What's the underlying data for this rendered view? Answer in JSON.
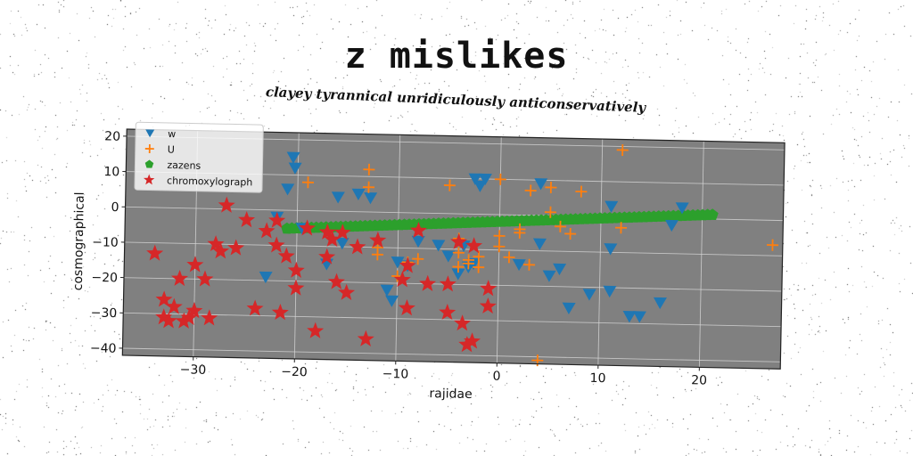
{
  "title": "z mislikes",
  "subtitle": "clayey tyrannical unridiculously anticonservatively",
  "chart_data": {
    "type": "scatter",
    "xlabel": "rajidae",
    "ylabel": "cosmographical",
    "xlim": [
      -37,
      28
    ],
    "ylim": [
      -42,
      22
    ],
    "xticks": [
      -30,
      -20,
      -10,
      0,
      10,
      20
    ],
    "yticks": [
      -40,
      -30,
      -20,
      -10,
      0,
      10,
      20
    ],
    "xtick_labels": [
      "−30",
      "−20",
      "−10",
      "0",
      "10",
      "20"
    ],
    "ytick_labels": [
      "−40",
      "−30",
      "−20",
      "−10",
      "0",
      "10",
      "20"
    ],
    "grid": true,
    "legend_position": "top-left",
    "plot_background": "#808080",
    "series": [
      {
        "name": "w",
        "marker": "triangle-down",
        "color": "#1f77b4",
        "points": [
          [
            -20.5,
            15
          ],
          [
            -20.3,
            12
          ],
          [
            -21,
            6
          ],
          [
            -19.5,
            -5
          ],
          [
            -22,
            -2
          ],
          [
            -23,
            -19
          ],
          [
            -17,
            -15
          ],
          [
            -16,
            4
          ],
          [
            -15.5,
            -9
          ],
          [
            -14,
            5
          ],
          [
            -12.8,
            4
          ],
          [
            -11,
            -22
          ],
          [
            -10.5,
            -25
          ],
          [
            -10,
            -14
          ],
          [
            -9,
            -15
          ],
          [
            -8,
            -8
          ],
          [
            -6,
            -9
          ],
          [
            -5,
            -12
          ],
          [
            -4,
            -17
          ],
          [
            -3.5,
            -9
          ],
          [
            -3,
            -15
          ],
          [
            -2.5,
            10
          ],
          [
            -2.5,
            -14
          ],
          [
            -1.5,
            10
          ],
          [
            -2,
            8
          ],
          [
            2,
            -14
          ],
          [
            4,
            9
          ],
          [
            4,
            -8
          ],
          [
            5,
            -17
          ],
          [
            6,
            -15
          ],
          [
            7,
            -26
          ],
          [
            9,
            -22
          ],
          [
            11,
            -9
          ],
          [
            11,
            -21
          ],
          [
            11,
            3
          ],
          [
            13,
            -28
          ],
          [
            14,
            -28
          ],
          [
            16,
            -24
          ],
          [
            17,
            -2
          ],
          [
            18,
            3
          ]
        ]
      },
      {
        "name": "U",
        "marker": "plus",
        "color": "#ff7f0e",
        "points": [
          [
            -19,
            8
          ],
          [
            -13,
            12
          ],
          [
            -13,
            7
          ],
          [
            -12,
            -10
          ],
          [
            -12,
            -12
          ],
          [
            -10,
            -18
          ],
          [
            -9,
            -14
          ],
          [
            -8,
            -13
          ],
          [
            -5,
            8
          ],
          [
            -4,
            -7
          ],
          [
            -4,
            -11
          ],
          [
            -4,
            -15
          ],
          [
            -3,
            -14
          ],
          [
            -3,
            -13
          ],
          [
            -2,
            -12
          ],
          [
            -2,
            -15
          ],
          [
            0,
            10
          ],
          [
            0,
            -6
          ],
          [
            0,
            -9
          ],
          [
            1,
            -12
          ],
          [
            2,
            -4
          ],
          [
            2,
            -5
          ],
          [
            3,
            -14
          ],
          [
            3,
            7
          ],
          [
            4,
            -41
          ],
          [
            5,
            8
          ],
          [
            5,
            1
          ],
          [
            6,
            -3
          ],
          [
            7,
            -5
          ],
          [
            8,
            7
          ],
          [
            12,
            19
          ],
          [
            12,
            -3
          ],
          [
            27,
            -7
          ]
        ]
      },
      {
        "name": "zazens",
        "marker": "pentagon",
        "color": "#2ca02c",
        "line": {
          "x_from": -21,
          "x_to": 21,
          "y_from": -5.2,
          "y_to": 1.2,
          "count": 88
        }
      },
      {
        "name": "chromoxylograph",
        "marker": "star",
        "color": "#d62728",
        "points": [
          [
            -34,
            -13
          ],
          [
            -33,
            -26
          ],
          [
            -33,
            -31
          ],
          [
            -32.5,
            -32
          ],
          [
            -32,
            -28
          ],
          [
            -31.5,
            -20
          ],
          [
            -31,
            -32
          ],
          [
            -30.5,
            -31
          ],
          [
            -30,
            -16
          ],
          [
            -30,
            -29
          ],
          [
            -29,
            -20
          ],
          [
            -28.5,
            -31
          ],
          [
            -28,
            -10
          ],
          [
            -27.5,
            -12
          ],
          [
            -27,
            1
          ],
          [
            -26,
            -11
          ],
          [
            -25,
            -3
          ],
          [
            -24,
            -28
          ],
          [
            -23,
            -6
          ],
          [
            -22,
            -3
          ],
          [
            -22,
            -10
          ],
          [
            -21.5,
            -29
          ],
          [
            -21,
            -13
          ],
          [
            -20,
            -17
          ],
          [
            -20,
            -22
          ],
          [
            -19,
            -5
          ],
          [
            -18,
            -34
          ],
          [
            -17,
            -13
          ],
          [
            -17,
            -6
          ],
          [
            -16.5,
            -8
          ],
          [
            -16,
            -20
          ],
          [
            -15.5,
            -6
          ],
          [
            -15,
            -23
          ],
          [
            -14,
            -10
          ],
          [
            -13,
            -36
          ],
          [
            -12,
            -8
          ],
          [
            -9.5,
            -19
          ],
          [
            -9,
            -15
          ],
          [
            -9,
            -27
          ],
          [
            -8,
            -5
          ],
          [
            -7,
            -20
          ],
          [
            -5,
            -20
          ],
          [
            -5,
            -28
          ],
          [
            -4,
            -8
          ],
          [
            -3.5,
            -31
          ],
          [
            -3,
            -37
          ],
          [
            -2.5,
            -36
          ],
          [
            -2.5,
            -9
          ],
          [
            -1,
            -21
          ],
          [
            -1,
            -26
          ]
        ]
      }
    ]
  }
}
